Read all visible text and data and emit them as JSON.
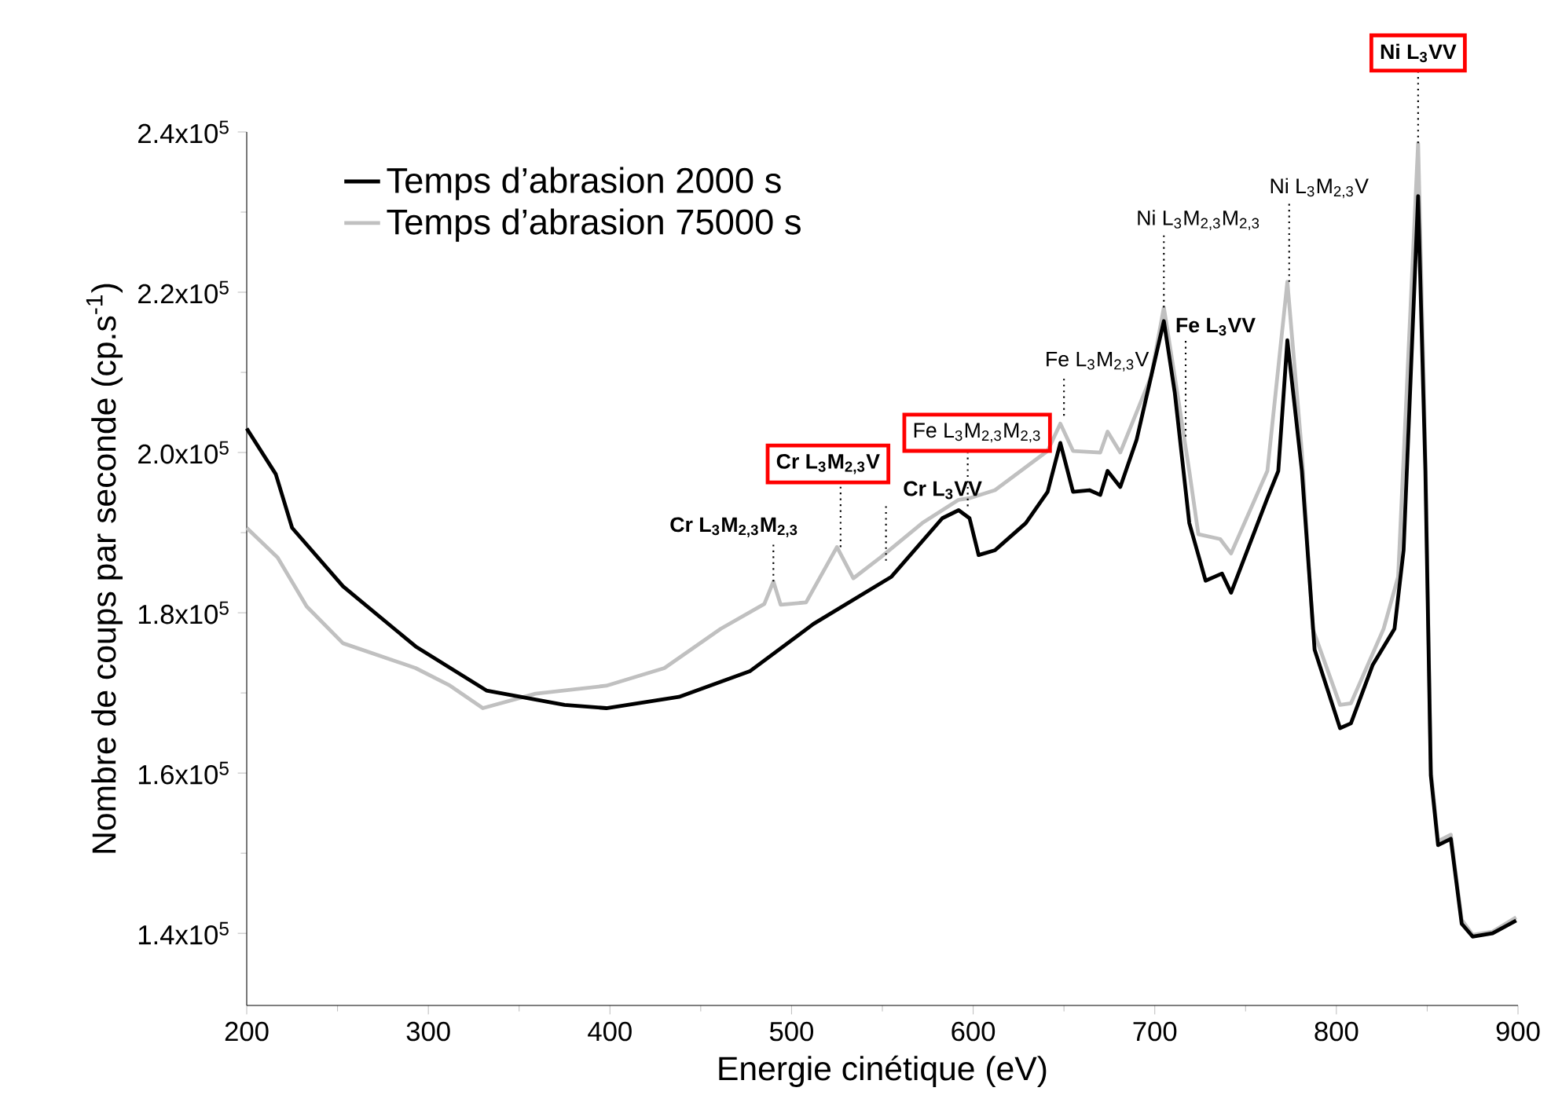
{
  "chart_data": {
    "type": "line",
    "xlabel": "Energie cinétique (eV)",
    "ylabel": "Nombre de coups par seconde (cp.s$^{-1}$)",
    "xlim": [
      200,
      900
    ],
    "xticks": [
      200,
      300,
      400,
      500,
      600,
      700,
      800,
      900
    ],
    "ylim": [
      131000,
      240000
    ],
    "yticks": [
      {
        "value": 140000,
        "label": "1.4x10$^{5}$"
      },
      {
        "value": 160000,
        "label": "1.6x10$^{5}$"
      },
      {
        "value": 180000,
        "label": "1.8x10$^{5}$"
      },
      {
        "value": 200000,
        "label": "2.0x10$^{5}$"
      },
      {
        "value": 220000,
        "label": "2.2x10$^{5}$"
      },
      {
        "value": 240000,
        "label": "2.4x10$^{5}$"
      }
    ],
    "legend": "top left",
    "series": [
      {
        "name": "Temps d’abrasion 2000 s",
        "color": "#000000",
        "x": [
          200,
          216,
          225,
          253,
          293,
          332,
          375,
          398,
          438,
          477,
          512,
          555,
          583,
          592,
          598,
          603,
          612,
          629,
          641,
          648,
          655,
          664,
          670,
          674,
          681,
          690,
          698,
          705,
          711,
          719,
          728,
          737,
          742,
          762,
          768,
          773,
          781,
          788,
          802,
          808,
          820,
          832,
          837,
          845,
          849,
          852,
          856,
          863,
          869,
          875,
          886,
          899
        ],
        "values": [
          203000,
          197300,
          190600,
          183300,
          175800,
          170300,
          168500,
          168100,
          169500,
          172700,
          178600,
          184500,
          191800,
          192800,
          191800,
          187200,
          187800,
          191200,
          195100,
          201200,
          195100,
          195300,
          194700,
          197700,
          195700,
          201600,
          209500,
          216400,
          207500,
          191200,
          184000,
          184900,
          182500,
          194300,
          197700,
          214000,
          197700,
          175400,
          165600,
          166200,
          173500,
          178000,
          187800,
          232000,
          197700,
          159700,
          151000,
          151800,
          141200,
          139600,
          140000,
          141600
        ]
      },
      {
        "name": "Temps d’abrasion 75000 s",
        "color": "#c0c0c0",
        "x": [
          200,
          217,
          233,
          253,
          293,
          312,
          330,
          359,
          398,
          430,
          461,
          485,
          490,
          494,
          508,
          525,
          534,
          549,
          572,
          592,
          598,
          612,
          641,
          648,
          655,
          670,
          674,
          681,
          698,
          705,
          712,
          719,
          724,
          736,
          742,
          762,
          773,
          781,
          787,
          802,
          808,
          826,
          834,
          845,
          849,
          852,
          856,
          863,
          869,
          875,
          886,
          899
        ],
        "values": [
          190600,
          186900,
          180800,
          176200,
          173100,
          170900,
          168100,
          169900,
          170900,
          173100,
          178000,
          181100,
          183900,
          181000,
          181300,
          188200,
          184300,
          186900,
          191200,
          194100,
          194300,
          195300,
          200200,
          203600,
          200200,
          200000,
          202600,
          200000,
          209500,
          218100,
          208000,
          197700,
          189800,
          189200,
          187400,
          197700,
          221300,
          200000,
          178000,
          168500,
          168700,
          178000,
          184500,
          238600,
          200000,
          160500,
          151500,
          152300,
          141700,
          139800,
          140200,
          142000
        ]
      }
    ],
    "annotations": [
      {
        "text": "Cr  L$_{3}$M$_{2,3}$M$_{2,3}$",
        "x": 490,
        "y": 183900
      },
      {
        "text": "Cr  L$_{3}$M$_{2,3}$V",
        "x": 527,
        "y": 188200
      },
      {
        "text": "Cr L$_{3}$VV",
        "x": 552,
        "y": 186500
      },
      {
        "text": "Fe  L$_{3}$M$_{2,3}$M$_{2,3}$",
        "x": 597,
        "y": 193300
      },
      {
        "text": "Fe  L$_{3}$M$_{2,3}$V",
        "x": 650,
        "y": 204600
      },
      {
        "text": "Ni  L$_{3}$M$_{2,3}$M$_{2,3}$",
        "x": 705,
        "y": 218100
      },
      {
        "text": "Fe L$_{3}$VV",
        "x": 717,
        "y": 202000
      },
      {
        "text": "Ni  L$_{3}$M$_{2,3}$V",
        "x": 774,
        "y": 221300
      },
      {
        "text": "Ni  L$_{3}$VV",
        "x": 845,
        "y": 238600
      }
    ]
  }
}
